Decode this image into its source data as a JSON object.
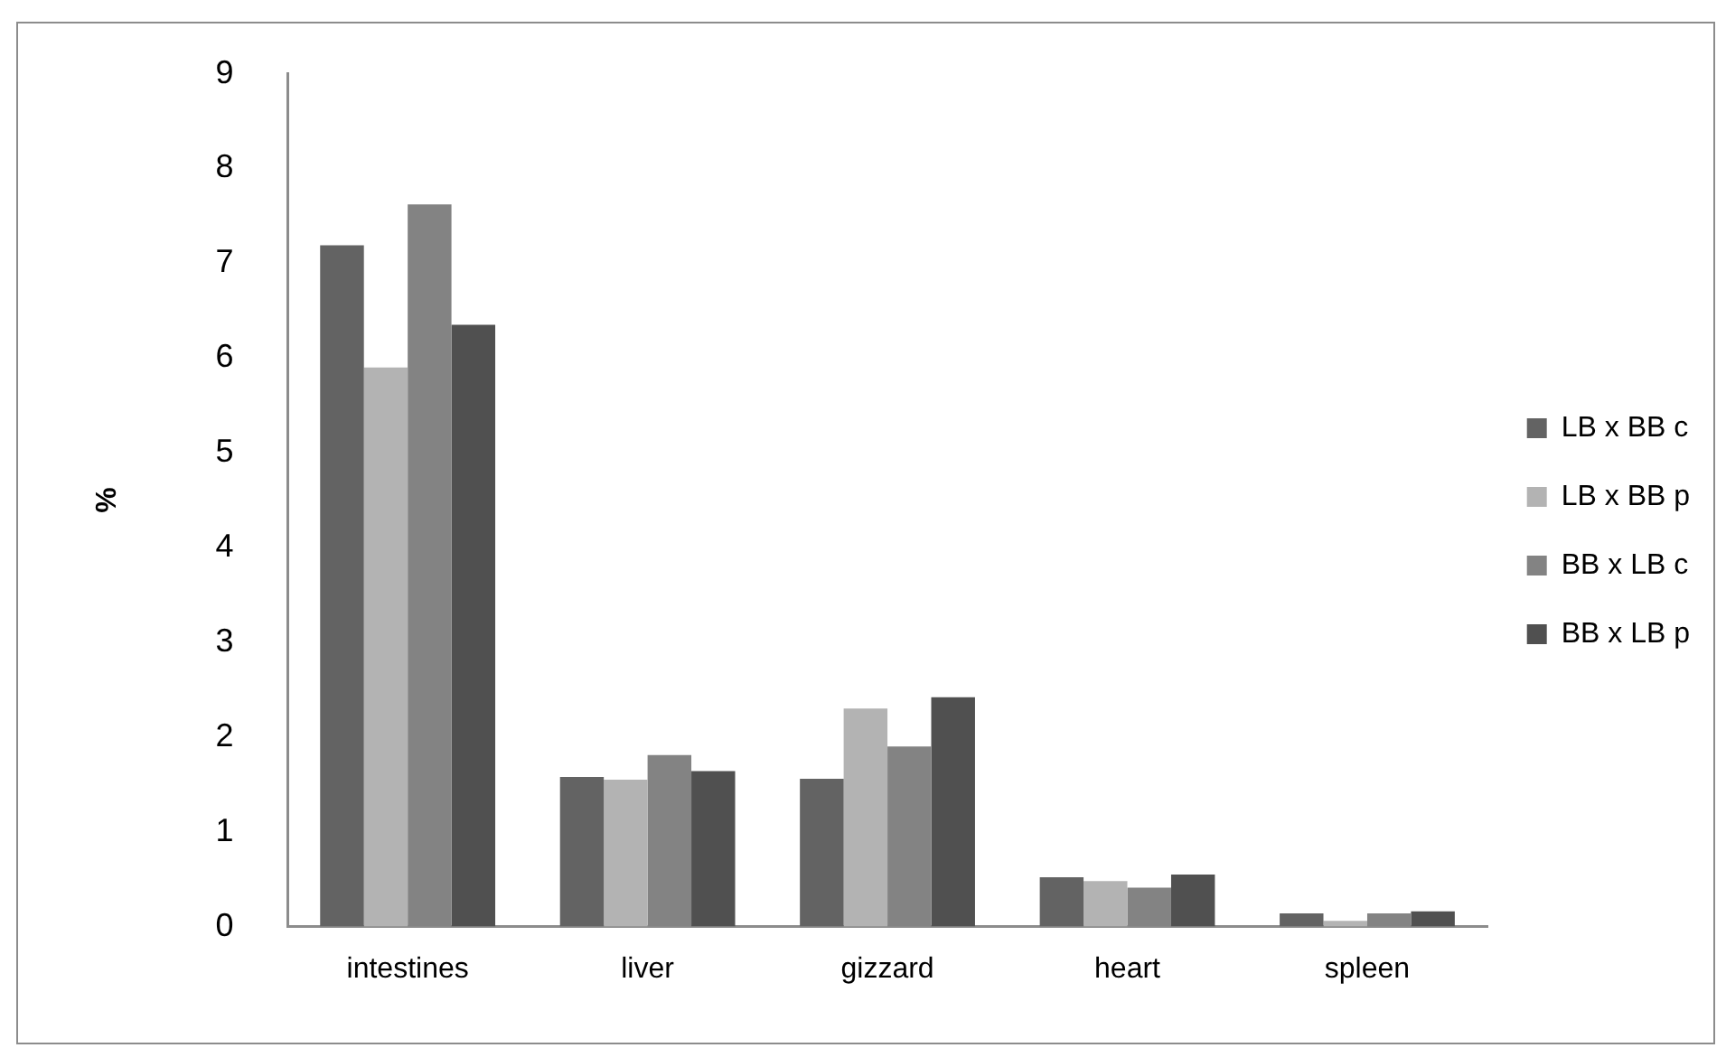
{
  "chart_data": {
    "type": "bar",
    "ylabel": "%",
    "categories": [
      "intestines",
      "liver",
      "gizzard",
      "heart",
      "spleen"
    ],
    "series": [
      {
        "name": "LB x BB c",
        "color": "#636363",
        "values": [
          7.19,
          1.58,
          1.56,
          0.52,
          0.14
        ]
      },
      {
        "name": "LB x BB p",
        "color": "#b3b3b3",
        "values": [
          5.9,
          1.55,
          2.3,
          0.48,
          0.06
        ]
      },
      {
        "name": "BB x LB c",
        "color": "#838383",
        "values": [
          7.62,
          1.81,
          1.9,
          0.41,
          0.14
        ]
      },
      {
        "name": "BB x LB p",
        "color": "#505050",
        "values": [
          6.35,
          1.64,
          2.42,
          0.55,
          0.16
        ]
      }
    ],
    "ylim": [
      0,
      9
    ],
    "yticks": [
      0,
      1,
      2,
      3,
      4,
      5,
      6,
      7,
      8,
      9
    ],
    "grid": false,
    "legend": "right"
  }
}
